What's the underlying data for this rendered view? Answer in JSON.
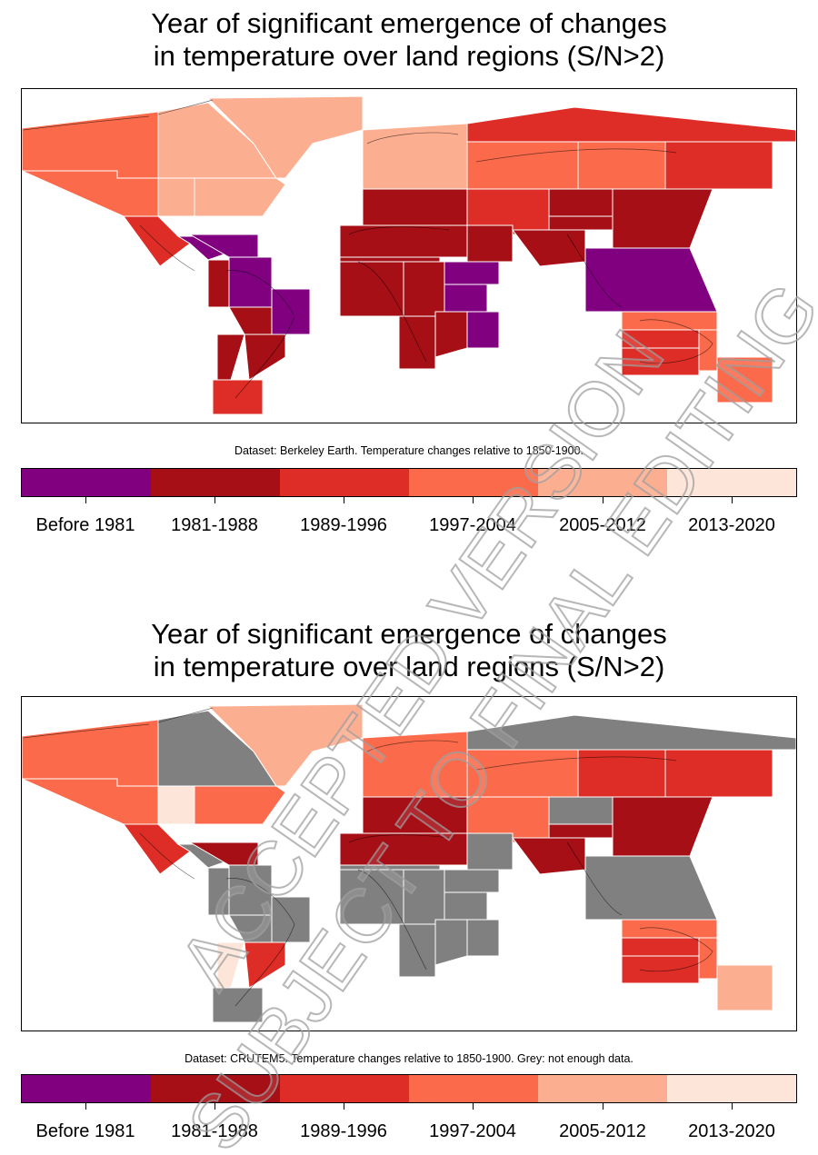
{
  "panels": [
    {
      "title_line1": "Year of significant emergence of changes",
      "title_line2": "in temperature over land regions (S/N>2)",
      "caption": "Dataset: Berkeley Earth. Temperature changes relative to 1850-1900.",
      "regions": [
        {
          "id": "NWN",
          "bin": 3
        },
        {
          "id": "NEN",
          "bin": 4
        },
        {
          "id": "GIC",
          "bin": 4
        },
        {
          "id": "WNA",
          "bin": 3
        },
        {
          "id": "CNA",
          "bin": 4
        },
        {
          "id": "ENA",
          "bin": 4
        },
        {
          "id": "NCA",
          "bin": 2
        },
        {
          "id": "SCA",
          "bin": 0
        },
        {
          "id": "CAR",
          "bin": 0
        },
        {
          "id": "NWS",
          "bin": 1
        },
        {
          "id": "NSA",
          "bin": 0
        },
        {
          "id": "NES",
          "bin": 0
        },
        {
          "id": "SAM",
          "bin": 1
        },
        {
          "id": "SWS",
          "bin": 1
        },
        {
          "id": "SES",
          "bin": 1
        },
        {
          "id": "SSA",
          "bin": 2
        },
        {
          "id": "NEU",
          "bin": 4
        },
        {
          "id": "WCE",
          "bin": 1
        },
        {
          "id": "EEU",
          "bin": 3
        },
        {
          "id": "MED",
          "bin": 1
        },
        {
          "id": "SAH",
          "bin": 1
        },
        {
          "id": "WAF",
          "bin": 1
        },
        {
          "id": "CAF",
          "bin": 1
        },
        {
          "id": "NEAF",
          "bin": 0
        },
        {
          "id": "SEAF",
          "bin": 0
        },
        {
          "id": "WSAF",
          "bin": 1
        },
        {
          "id": "ESAF",
          "bin": 1
        },
        {
          "id": "MDG",
          "bin": 0
        },
        {
          "id": "RAR",
          "bin": 2
        },
        {
          "id": "WSB",
          "bin": 3
        },
        {
          "id": "ESB",
          "bin": 3
        },
        {
          "id": "RFE",
          "bin": 2
        },
        {
          "id": "WCA",
          "bin": 2
        },
        {
          "id": "ECA",
          "bin": 1
        },
        {
          "id": "TIB",
          "bin": 1
        },
        {
          "id": "EAS",
          "bin": 1
        },
        {
          "id": "ARP",
          "bin": 1
        },
        {
          "id": "SAS",
          "bin": 1
        },
        {
          "id": "SEA",
          "bin": 0
        },
        {
          "id": "NAU",
          "bin": 3
        },
        {
          "id": "CAU",
          "bin": 2
        },
        {
          "id": "EAU",
          "bin": 3
        },
        {
          "id": "SAU",
          "bin": 2
        },
        {
          "id": "NZ",
          "bin": 3
        }
      ]
    },
    {
      "title_line1": "Year of significant emergence of changes",
      "title_line2": "in temperature over land regions (S/N>2)",
      "caption": "Dataset: CRUTEM5. Temperature changes relative to 1850-1900. Grey: not enough data.",
      "regions": [
        {
          "id": "NWN",
          "bin": 3
        },
        {
          "id": "NEN",
          "bin": -1
        },
        {
          "id": "GIC",
          "bin": 4
        },
        {
          "id": "WNA",
          "bin": 3
        },
        {
          "id": "CNA",
          "bin": 5
        },
        {
          "id": "ENA",
          "bin": 3
        },
        {
          "id": "NCA",
          "bin": 2
        },
        {
          "id": "SCA",
          "bin": -1
        },
        {
          "id": "CAR",
          "bin": 1
        },
        {
          "id": "NWS",
          "bin": -1
        },
        {
          "id": "NSA",
          "bin": -1
        },
        {
          "id": "NES",
          "bin": -1
        },
        {
          "id": "SAM",
          "bin": -1
        },
        {
          "id": "SWS",
          "bin": 5
        },
        {
          "id": "SES",
          "bin": 2
        },
        {
          "id": "SSA",
          "bin": -1
        },
        {
          "id": "NEU",
          "bin": 3
        },
        {
          "id": "WCE",
          "bin": 1
        },
        {
          "id": "EEU",
          "bin": 4
        },
        {
          "id": "MED",
          "bin": 1
        },
        {
          "id": "SAH",
          "bin": -1
        },
        {
          "id": "WAF",
          "bin": -1
        },
        {
          "id": "CAF",
          "bin": -1
        },
        {
          "id": "NEAF",
          "bin": -1
        },
        {
          "id": "SEAF",
          "bin": -1
        },
        {
          "id": "WSAF",
          "bin": -1
        },
        {
          "id": "ESAF",
          "bin": -1
        },
        {
          "id": "MDG",
          "bin": -1
        },
        {
          "id": "RAR",
          "bin": -1
        },
        {
          "id": "WSB",
          "bin": 3
        },
        {
          "id": "ESB",
          "bin": 2
        },
        {
          "id": "RFE",
          "bin": 2
        },
        {
          "id": "WCA",
          "bin": 3
        },
        {
          "id": "ECA",
          "bin": -1
        },
        {
          "id": "TIB",
          "bin": 1
        },
        {
          "id": "EAS",
          "bin": 1
        },
        {
          "id": "ARP",
          "bin": -1
        },
        {
          "id": "SAS",
          "bin": 1
        },
        {
          "id": "SEA",
          "bin": -1
        },
        {
          "id": "NAU",
          "bin": 3
        },
        {
          "id": "CAU",
          "bin": 2
        },
        {
          "id": "EAU",
          "bin": 3
        },
        {
          "id": "SAU",
          "bin": 2
        },
        {
          "id": "NZ",
          "bin": 4
        }
      ]
    }
  ],
  "legend": {
    "bins": [
      {
        "label": "Before 1981",
        "color": "#800080"
      },
      {
        "label": "1981-1988",
        "color": "#a50f15"
      },
      {
        "label": "1989-1996",
        "color": "#de2d26"
      },
      {
        "label": "1997-2004",
        "color": "#fb6a4a"
      },
      {
        "label": "2005-2012",
        "color": "#fcae91"
      },
      {
        "label": "2013-2020",
        "color": "#fee5d9"
      }
    ],
    "no_data_color": "#808080"
  },
  "watermark": {
    "line1": "ACCEPTED VERSION",
    "line2": "SUBJECT TO FINAL EDITING"
  }
}
